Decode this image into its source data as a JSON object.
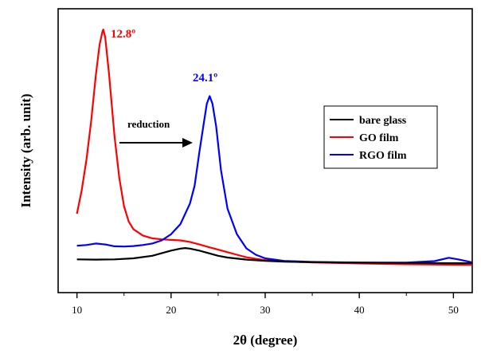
{
  "chart_data": {
    "type": "line",
    "xlabel": "2θ (degree)",
    "ylabel": "Intensity (arb. unit)",
    "xlim": [
      8,
      52
    ],
    "ylim": [
      0,
      100
    ],
    "x_ticks": [
      10,
      20,
      30,
      40,
      50
    ],
    "x_tick_labels": [
      "10",
      "20",
      "30",
      "40",
      "50"
    ],
    "y_ticks_shown": false,
    "grid": false,
    "legend_position": "right",
    "series": [
      {
        "name": "bare glass",
        "color": "#000000",
        "x": [
          10,
          12,
          14,
          16,
          18,
          19,
          20,
          21,
          21.5,
          22,
          23,
          24,
          25,
          26,
          28,
          30,
          32,
          35,
          40,
          45,
          50,
          52
        ],
        "y": [
          10.2,
          10.1,
          10.2,
          10.6,
          11.6,
          12.6,
          13.6,
          14.4,
          14.6,
          14.4,
          13.6,
          12.6,
          11.6,
          10.9,
          10.1,
          9.6,
          9.3,
          9.1,
          8.9,
          8.8,
          8.7,
          8.7
        ]
      },
      {
        "name": "GO film",
        "color": "#ff0000",
        "x": [
          10,
          10.5,
          11,
          11.5,
          12,
          12.4,
          12.7,
          12.8,
          13,
          13.4,
          14,
          14.5,
          15,
          15.5,
          16,
          17,
          18,
          19,
          20,
          21,
          22,
          23,
          24,
          25,
          26,
          27,
          28,
          29,
          30,
          32,
          35,
          40,
          45,
          50,
          52
        ],
        "y": [
          28,
          37,
          49,
          64,
          82,
          94,
          99,
          100,
          97,
          83,
          58,
          42,
          31,
          25,
          22,
          19.5,
          18.4,
          18,
          17.8,
          17.6,
          17,
          16,
          15,
          14,
          13,
          12,
          11,
          10.4,
          9.9,
          9.4,
          9.0,
          8.6,
          8.3,
          8.1,
          8.0
        ]
      },
      {
        "name": "RGO film",
        "color": "#0000ff",
        "x": [
          10,
          11,
          12,
          13,
          14,
          15,
          16,
          17,
          18,
          19,
          20,
          21,
          22,
          22.5,
          23,
          23.5,
          23.8,
          24.1,
          24.4,
          24.8,
          25.3,
          26,
          27,
          28,
          29,
          30,
          32,
          35,
          40,
          45,
          48,
          49.5,
          50.5,
          52
        ],
        "y": [
          15.5,
          15.8,
          16.4,
          16.0,
          15.3,
          15.2,
          15.4,
          15.8,
          16.4,
          17.6,
          20,
          24,
          32,
          39,
          52,
          64,
          71,
          74,
          71,
          62,
          45,
          30,
          20,
          14.5,
          12,
          10.6,
          9.6,
          9.2,
          8.9,
          8.9,
          9.5,
          10.8,
          10.2,
          9.0
        ]
      }
    ],
    "annotations": [
      {
        "text": "12.8º",
        "color": "#ff0000"
      },
      {
        "text": "24.1º",
        "color": "#0000ff"
      },
      {
        "text": "reduction",
        "color": "#000000"
      }
    ]
  }
}
